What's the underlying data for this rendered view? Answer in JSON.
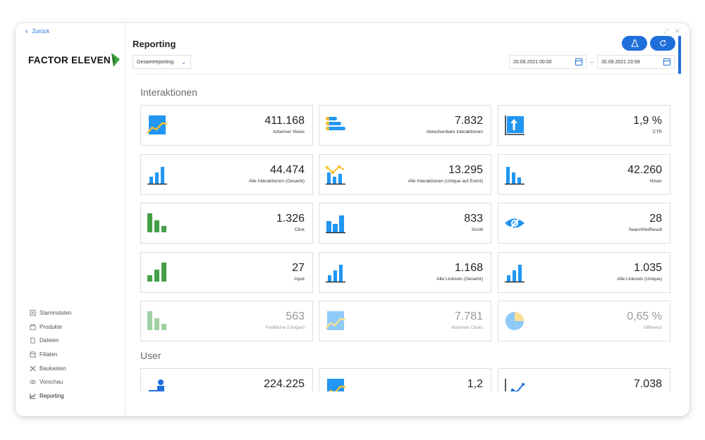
{
  "back": {
    "label": "Zurück"
  },
  "brand": {
    "logo_text": "FACTOR ELEVEN"
  },
  "nav": {
    "items": [
      {
        "label": "Stammdaten",
        "icon": "document-icon"
      },
      {
        "label": "Produkte",
        "icon": "box-icon"
      },
      {
        "label": "Dateien",
        "icon": "file-icon"
      },
      {
        "label": "Filialen",
        "icon": "store-icon"
      },
      {
        "label": "Baukasten",
        "icon": "tools-icon"
      },
      {
        "label": "Vorschau",
        "icon": "eye-icon"
      },
      {
        "label": "Reporting",
        "icon": "chart-line-icon"
      }
    ],
    "active": "Reporting"
  },
  "header": {
    "title": "Reporting",
    "report_select": "Gesamtreporting",
    "date_from": "20.09.2021 00:00",
    "date_to": "30.09.2021 23:59",
    "date_separator": "–"
  },
  "sections": {
    "interactions_title": "Interaktionen",
    "user_title": "User"
  },
  "cards": [
    {
      "value": "411.168",
      "label": "Adserver Views",
      "icon": "area-chart-icon"
    },
    {
      "value": "7.832",
      "label": "Abrechenbare Interaktionen",
      "icon": "horizontal-bars-icon"
    },
    {
      "value": "1,9 %",
      "label": "CTR",
      "icon": "upload-chart-icon"
    },
    {
      "value": "44.474",
      "label": "Alle Interaktionen (Gesamt)",
      "icon": "bar-chart-icon"
    },
    {
      "value": "13.295",
      "label": "Alle Interaktionen (Unique auf Event)",
      "icon": "bar-line-chart-icon"
    },
    {
      "value": "42.260",
      "label": "Hover",
      "icon": "descending-bars-icon"
    },
    {
      "value": "1.326",
      "label": "Click",
      "icon": "green-bars-icon"
    },
    {
      "value": "833",
      "label": "Scroll",
      "icon": "bar-chart-icon"
    },
    {
      "value": "28",
      "label": "SearchNoResult",
      "icon": "eye-off-icon"
    },
    {
      "value": "27",
      "label": "Input",
      "icon": "green-ascending-bars-icon"
    },
    {
      "value": "1.168",
      "label": "Alle Linkouts (Gesamt)",
      "icon": "bar-chart-icon"
    },
    {
      "value": "1.035",
      "label": "Alle Linkouts (Unique)",
      "icon": "bar-chart-icon"
    },
    {
      "value": "563",
      "label": "Freifläche (Unique)",
      "icon": "green-bars-icon"
    },
    {
      "value": "7.781",
      "label": "Adserver Clicks",
      "icon": "area-chart-icon"
    },
    {
      "value": "0,65 %",
      "label": "Differenz",
      "icon": "pie-chart-icon"
    }
  ],
  "user_cards": [
    {
      "value": "224.225",
      "icon": "user-stat-icon"
    },
    {
      "value": "1,2",
      "icon": "area-chart-icon"
    },
    {
      "value": "7.038",
      "icon": "line-trend-icon"
    }
  ],
  "colors": {
    "accent": "#1e6fd9",
    "blue": "#2196f3",
    "green": "#43a047",
    "yellow": "#fbc02d"
  }
}
